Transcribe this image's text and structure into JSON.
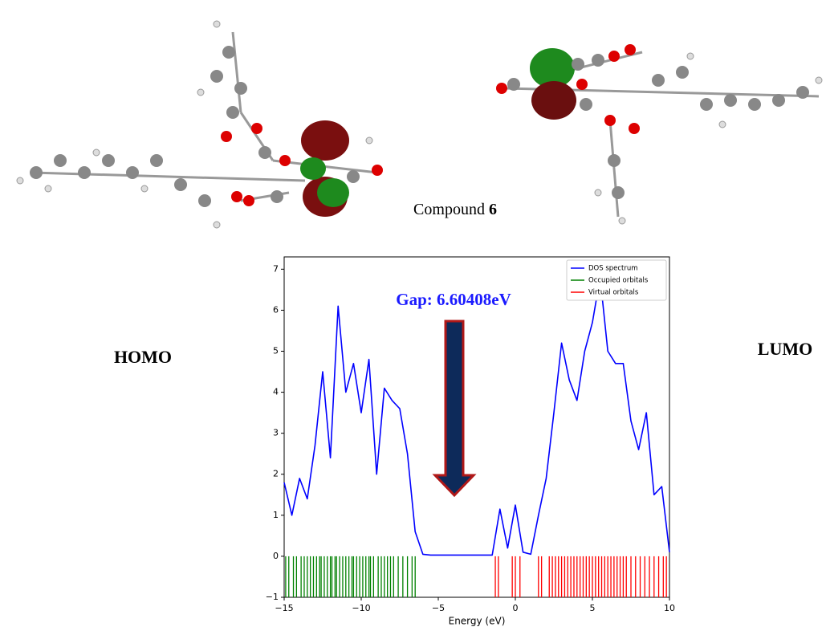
{
  "labels": {
    "homo": "HOMO",
    "lumo": "LUMO",
    "compound": "Compound",
    "compound_number": "6"
  },
  "chart_data": {
    "type": "line",
    "annotation": "Gap: 6.60408eV",
    "xlabel": "Energy (eV)",
    "x": [
      -15,
      -14.5,
      -14,
      -13.5,
      -13,
      -12.5,
      -12,
      -11.5,
      -11,
      -10.5,
      -10,
      -9.5,
      -9,
      -8.5,
      -8,
      -7.5,
      -7,
      -6.5,
      -6,
      -5.5,
      -5,
      -4.5,
      -4,
      -3.5,
      -3,
      -2.5,
      -2,
      -1.5,
      -1,
      -0.5,
      0,
      0.5,
      1,
      1.5,
      2,
      2.5,
      3,
      3.5,
      4,
      4.5,
      5,
      5.5,
      6,
      6.5,
      7,
      7.5,
      8,
      8.5,
      9,
      9.5,
      10
    ],
    "series": [
      {
        "name": "DOS spectrum",
        "color": "#0000ff",
        "values": [
          1.8,
          1.0,
          1.9,
          1.4,
          2.7,
          4.5,
          2.4,
          6.1,
          4.0,
          4.7,
          3.5,
          4.8,
          2.0,
          4.1,
          3.8,
          3.6,
          2.5,
          0.6,
          0.05,
          0.03,
          0.03,
          0.03,
          0.03,
          0.03,
          0.03,
          0.03,
          0.03,
          0.03,
          1.15,
          0.2,
          1.25,
          0.1,
          0.05,
          1.0,
          1.9,
          3.5,
          5.2,
          4.3,
          3.8,
          5.0,
          5.7,
          6.8,
          5.0,
          4.7,
          4.7,
          3.3,
          2.6,
          3.5,
          1.5,
          1.7,
          0.1
        ]
      },
      {
        "name": "Occupied orbitals",
        "color": "#008000",
        "x": [
          -14.9,
          -14.7,
          -14.4,
          -14.2,
          -13.9,
          -13.7,
          -13.5,
          -13.3,
          -13.1,
          -12.9,
          -12.7,
          -12.6,
          -12.4,
          -12.2,
          -12.0,
          -11.9,
          -11.7,
          -11.6,
          -11.4,
          -11.2,
          -11.0,
          -10.8,
          -10.6,
          -10.5,
          -10.3,
          -10.1,
          -9.9,
          -9.7,
          -9.5,
          -9.4,
          -9.2,
          -8.9,
          -8.7,
          -8.5,
          -8.3,
          -8.1,
          -7.9,
          -7.6,
          -7.3,
          -7.0,
          -6.7,
          -6.5
        ]
      },
      {
        "name": "Virtual orbitals",
        "color": "#ff0000",
        "x": [
          -1.3,
          -1.1,
          -0.2,
          0.0,
          0.3,
          1.5,
          1.7,
          2.2,
          2.4,
          2.6,
          2.8,
          3.0,
          3.2,
          3.4,
          3.6,
          3.8,
          4.0,
          4.2,
          4.4,
          4.6,
          4.8,
          5.0,
          5.2,
          5.4,
          5.6,
          5.8,
          6.0,
          6.2,
          6.4,
          6.6,
          6.8,
          7.0,
          7.2,
          7.5,
          7.8,
          8.1,
          8.4,
          8.7,
          9.0,
          9.3,
          9.6,
          9.8
        ]
      }
    ],
    "xlim": [
      -15,
      10
    ],
    "ylim": [
      -1,
      7.3
    ],
    "xticks": [
      {
        "value": -15,
        "label": "−15"
      },
      {
        "value": -10,
        "label": "−10"
      },
      {
        "value": -5,
        "label": "−5"
      },
      0,
      5,
      10
    ],
    "yticks": [
      {
        "value": -1,
        "label": "−1"
      },
      0,
      1,
      2,
      3,
      4,
      5,
      6,
      7
    ],
    "legend": "upper right"
  }
}
